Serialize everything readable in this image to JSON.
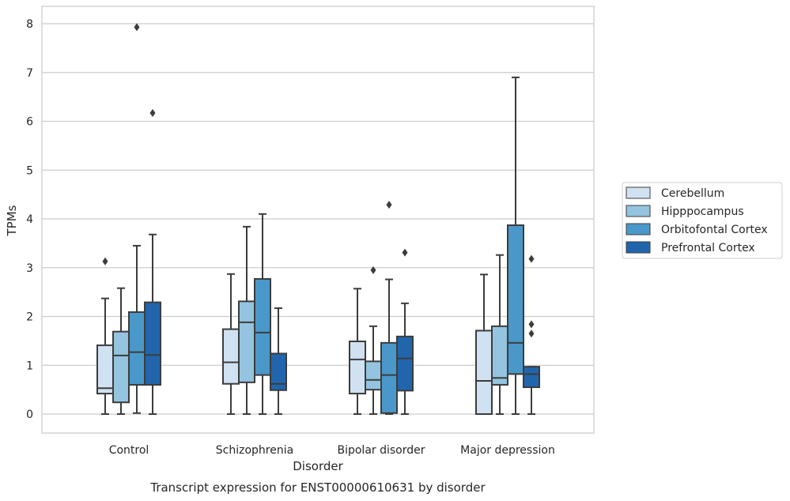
{
  "chart_data": {
    "type": "boxplot",
    "caption": "Transcript expression for ENST00000610631 by disorder",
    "xlabel": "Disorder",
    "ylabel": "TPMs",
    "ylim": [
      -0.38,
      8.35
    ],
    "yticks": [
      0,
      1,
      2,
      3,
      4,
      5,
      6,
      7,
      8
    ],
    "grid": true,
    "legend_position": "right",
    "categories": [
      "Control",
      "Schizophrenia",
      "Bipolar disorder",
      "Major depression"
    ],
    "series": [
      {
        "name": "Cerebellum",
        "color": "#d0e1f2",
        "boxes": [
          {
            "whislo": 0.0,
            "q1": 0.42,
            "med": 0.53,
            "q3": 1.41,
            "whishi": 2.37,
            "fliers": [
              3.13
            ]
          },
          {
            "whislo": 0.0,
            "q1": 0.62,
            "med": 1.06,
            "q3": 1.74,
            "whishi": 2.87,
            "fliers": []
          },
          {
            "whislo": 0.0,
            "q1": 0.42,
            "med": 1.12,
            "q3": 1.49,
            "whishi": 2.57,
            "fliers": []
          },
          {
            "whislo": 0.0,
            "q1": 0.0,
            "med": 0.68,
            "q3": 1.71,
            "whishi": 2.86,
            "fliers": []
          }
        ]
      },
      {
        "name": "Hipppocampus",
        "color": "#94c4df",
        "boxes": [
          {
            "whislo": 0.0,
            "q1": 0.24,
            "med": 1.2,
            "q3": 1.69,
            "whishi": 2.58,
            "fliers": []
          },
          {
            "whislo": 0.0,
            "q1": 0.65,
            "med": 1.88,
            "q3": 2.31,
            "whishi": 3.84,
            "fliers": []
          },
          {
            "whislo": 0.0,
            "q1": 0.5,
            "med": 0.7,
            "q3": 1.08,
            "whishi": 1.8,
            "fliers": [
              2.95
            ]
          },
          {
            "whislo": 0.0,
            "q1": 0.6,
            "med": 0.74,
            "q3": 1.8,
            "whishi": 3.26,
            "fliers": []
          }
        ]
      },
      {
        "name": "Orbitofontal Cortex",
        "color": "#4a98c9",
        "boxes": [
          {
            "whislo": 0.02,
            "q1": 0.6,
            "med": 1.27,
            "q3": 2.09,
            "whishi": 3.45,
            "fliers": [
              7.93
            ]
          },
          {
            "whislo": 0.0,
            "q1": 0.8,
            "med": 1.67,
            "q3": 2.77,
            "whishi": 4.1,
            "fliers": []
          },
          {
            "whislo": 0.0,
            "q1": 0.02,
            "med": 0.8,
            "q3": 1.46,
            "whishi": 2.76,
            "fliers": [
              4.29
            ]
          },
          {
            "whislo": 0.0,
            "q1": 0.82,
            "med": 1.46,
            "q3": 3.87,
            "whishi": 6.9,
            "fliers": []
          }
        ]
      },
      {
        "name": "Prefrontal Cortex",
        "color": "#2166ac",
        "boxes": [
          {
            "whislo": 0.0,
            "q1": 0.6,
            "med": 1.21,
            "q3": 2.29,
            "whishi": 3.68,
            "fliers": [
              6.17
            ]
          },
          {
            "whislo": 0.0,
            "q1": 0.49,
            "med": 0.62,
            "q3": 1.24,
            "whishi": 2.17,
            "fliers": []
          },
          {
            "whislo": 0.0,
            "q1": 0.48,
            "med": 1.14,
            "q3": 1.59,
            "whishi": 2.27,
            "fliers": [
              3.31
            ]
          },
          {
            "whislo": 0.0,
            "q1": 0.55,
            "med": 0.82,
            "q3": 0.97,
            "whishi": 0.97,
            "fliers": [
              1.65,
              1.84,
              3.18
            ]
          }
        ]
      }
    ]
  }
}
